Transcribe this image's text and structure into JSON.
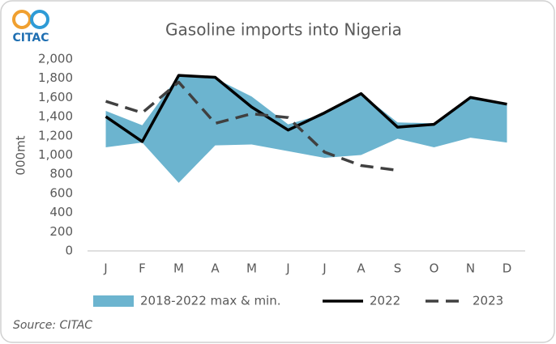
{
  "chart_data": {
    "type": "band-line",
    "title": "Gasoline imports into Nigeria",
    "logo": "CITAC",
    "source": "Source: CITAC",
    "y_label": "000mt",
    "categories": [
      "J",
      "F",
      "M",
      "A",
      "M",
      "J",
      "J",
      "A",
      "S",
      "O",
      "N",
      "D"
    ],
    "series": [
      {
        "name": "2018-2022 max & min.",
        "type": "band",
        "color": "#6cb4cf",
        "max": [
          1460,
          1310,
          1830,
          1800,
          1610,
          1320,
          1430,
          1640,
          1340,
          1330,
          1600,
          1540
        ],
        "min": [
          1080,
          1130,
          710,
          1100,
          1110,
          1040,
          970,
          1000,
          1170,
          1080,
          1180,
          1130
        ]
      },
      {
        "name": "2022",
        "type": "line",
        "color": "#000000",
        "dashed": false,
        "values": [
          1400,
          1140,
          1830,
          1810,
          1500,
          1260,
          1440,
          1640,
          1290,
          1320,
          1600,
          1530
        ]
      },
      {
        "name": "2023",
        "type": "line",
        "color": "#404040",
        "dashed": true,
        "values": [
          1560,
          1440,
          1760,
          1330,
          1430,
          1390,
          1030,
          890,
          840,
          null,
          null,
          null
        ]
      }
    ],
    "ylim": [
      0,
      2000
    ],
    "yticks": [
      0,
      200,
      400,
      600,
      800,
      {
        "value": 1000,
        "label": "1,000"
      },
      {
        "value": 1200,
        "label": "1,200"
      },
      {
        "value": 1400,
        "label": "1,400"
      },
      {
        "value": 1600,
        "label": "1,600"
      },
      {
        "value": 1800,
        "label": "1,800"
      },
      {
        "value": 2000,
        "label": "2,000"
      }
    ],
    "grid": false,
    "legend": "bottom"
  }
}
